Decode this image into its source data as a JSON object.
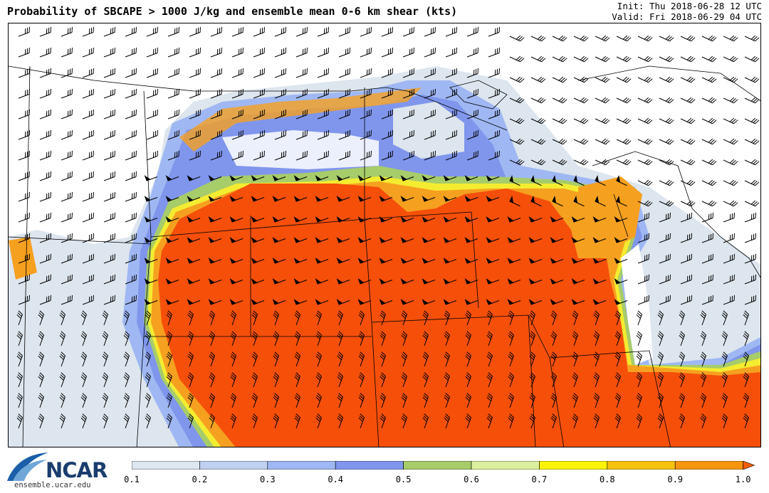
{
  "header": {
    "title": "Probability of SBCAPE > 1000 J/kg and ensemble mean 0-6 km shear (kts)",
    "init": "Init: Thu 2018-06-28 12 UTC",
    "valid": "Valid: Fri 2018-06-29 04 UTC"
  },
  "logo": {
    "name": "NCAR",
    "url": "ensemble.ucar.edu"
  },
  "colorbar": {
    "ticks": [
      "0.1",
      "0.2",
      "0.3",
      "0.4",
      "0.5",
      "0.6",
      "0.7",
      "0.8",
      "0.9",
      "1.0"
    ],
    "colors": [
      "#dde5ee",
      "#bfd0f2",
      "#9fb8f3",
      "#7f96ec",
      "#a7cc6a",
      "#dcef9e",
      "#fbf40a",
      "#f9c20e",
      "#f6960f"
    ],
    "over_color": "#f55a0a"
  },
  "map": {
    "probability_high_color": "#f54f0a",
    "probability_orange_color": "#f6a020",
    "probability_yellow_color": "#f4ec30"
  }
}
